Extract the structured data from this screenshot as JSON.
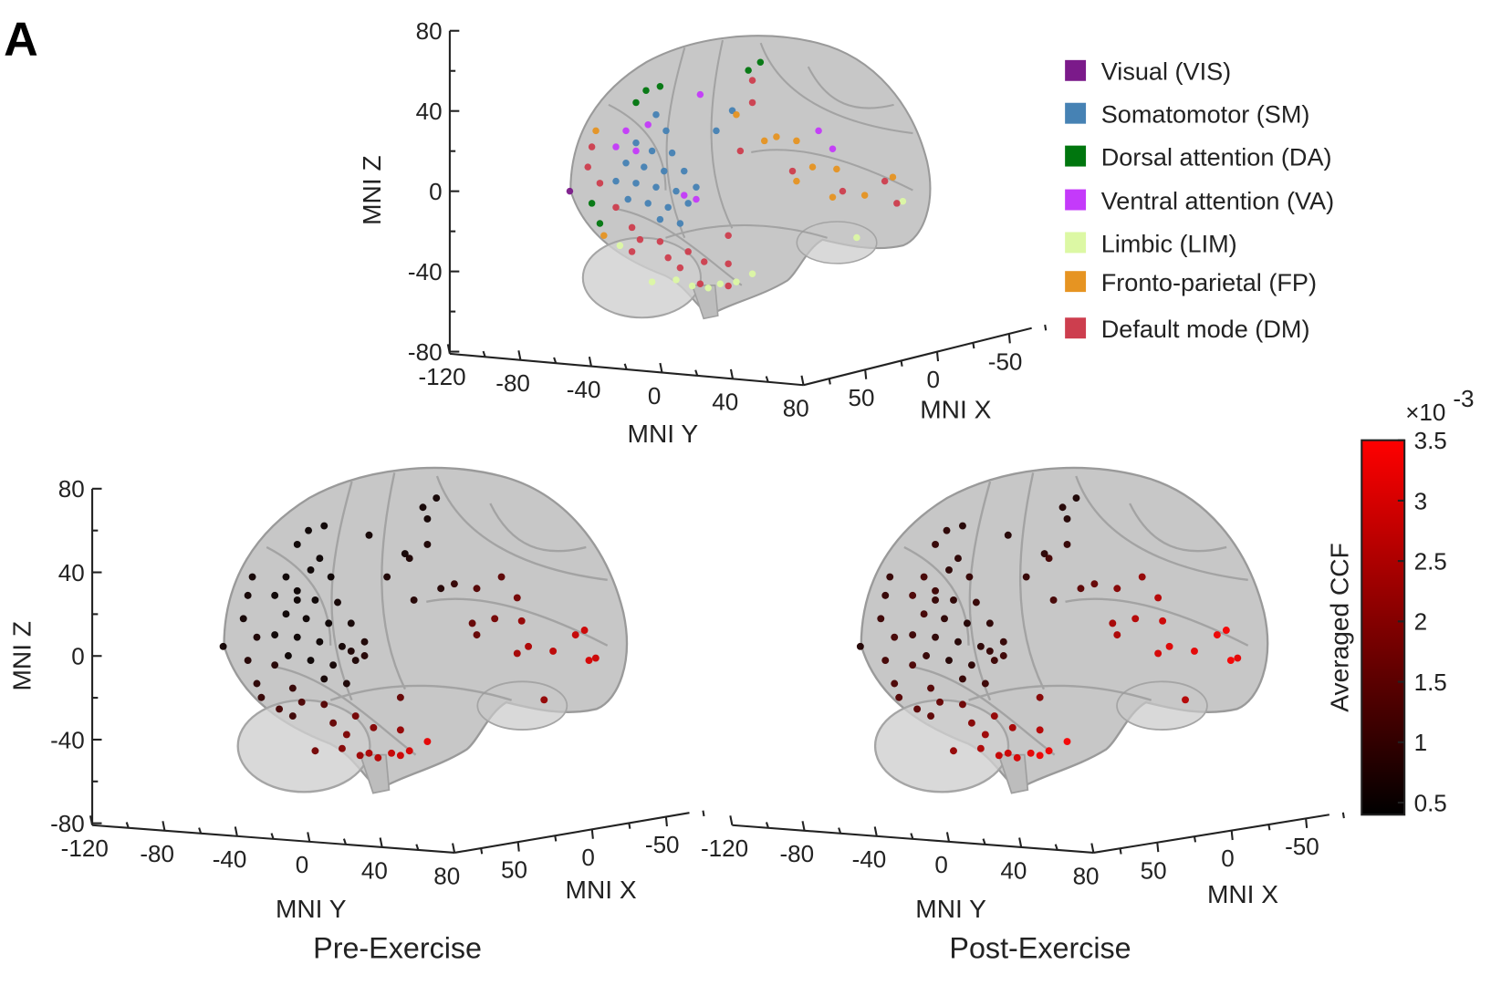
{
  "panel_label": "A",
  "chart_data": [
    {
      "type": "scatter",
      "view": "3d-lateral-brain",
      "xlabel": "MNI Y",
      "ylabel": "MNI Z",
      "zlabel": "MNI X",
      "y_ticks": [
        "-120",
        "-80",
        "-40",
        "0",
        "40",
        "80"
      ],
      "z_ticks": [
        "80",
        "40",
        "0",
        "-40",
        "-80"
      ],
      "x_ticks": [
        "50",
        "0",
        "-50"
      ],
      "ylim": [
        -120,
        80
      ],
      "zlim": [
        -80,
        80
      ],
      "xlim": [
        75,
        -75
      ],
      "color_by": "network",
      "legend_position": "right",
      "legend": [
        {
          "key": "VIS",
          "label": "Visual (VIS)",
          "color": "#7b1a8a"
        },
        {
          "key": "SM",
          "label": "Somatomotor (SM)",
          "color": "#4682b4"
        },
        {
          "key": "DA",
          "label": "Dorsal attention (DA)",
          "color": "#00760e"
        },
        {
          "key": "VA",
          "label": "Ventral attention (VA)",
          "color": "#c43afa"
        },
        {
          "key": "LIM",
          "label": "Limbic (LIM)",
          "color": "#dcf8a4"
        },
        {
          "key": "FP",
          "label": "Fronto-parietal (FP)",
          "color": "#e69422"
        },
        {
          "key": "DM",
          "label": "Default mode (DM)",
          "color": "#cd3e4e"
        }
      ]
    },
    {
      "type": "scatter",
      "view": "3d-lateral-brain",
      "title": "Pre-Exercise",
      "xlabel": "MNI Y",
      "ylabel": "MNI Z",
      "zlabel": "MNI X",
      "y_ticks": [
        "-120",
        "-80",
        "-40",
        "0",
        "40",
        "80"
      ],
      "z_ticks": [
        "80",
        "40",
        "0",
        "-40",
        "-80"
      ],
      "x_ticks": [
        "50",
        "0",
        "-50"
      ],
      "color_by": "pre",
      "colormap": "black-to-red"
    },
    {
      "type": "scatter",
      "view": "3d-lateral-brain",
      "title": "Post-Exercise",
      "xlabel": "MNI Y",
      "zlabel": "MNI X",
      "y_ticks": [
        "-120",
        "-80",
        "-40",
        "0",
        "40",
        "80"
      ],
      "x_ticks": [
        "50",
        "0",
        "-50"
      ],
      "color_by": "post",
      "colormap": "black-to-red"
    }
  ],
  "colorbar": {
    "label": "Averaged CCF",
    "multiplier": "×10",
    "exponent": "-3",
    "range": [
      0.4,
      3.5
    ],
    "ticks": [
      "3.5",
      "3",
      "2.5",
      "2",
      "1.5",
      "1",
      "0.5"
    ],
    "color_low": "#000000",
    "color_high": "#ff0000"
  },
  "electrodes": [
    {
      "net": "VIS",
      "y": -103,
      "z": 0,
      "pre": 0.6,
      "post": 0.8
    },
    {
      "net": "SM",
      "y": -60,
      "z": 38,
      "pre": 0.5,
      "post": 0.9
    },
    {
      "net": "SM",
      "y": -55,
      "z": 30,
      "pre": 0.5,
      "post": 1.0
    },
    {
      "net": "SM",
      "y": -70,
      "z": 24,
      "pre": 0.5,
      "post": 1.1
    },
    {
      "net": "SM",
      "y": -62,
      "z": 20,
      "pre": 0.5,
      "post": 0.9
    },
    {
      "net": "SM",
      "y": -52,
      "z": 19,
      "pre": 0.6,
      "post": 1.0
    },
    {
      "net": "SM",
      "y": -75,
      "z": 14,
      "pre": 0.5,
      "post": 1.2
    },
    {
      "net": "SM",
      "y": -66,
      "z": 12,
      "pre": 0.5,
      "post": 0.9
    },
    {
      "net": "SM",
      "y": -56,
      "z": 10,
      "pre": 0.5,
      "post": 0.8
    },
    {
      "net": "SM",
      "y": -46,
      "z": 10,
      "pre": 0.6,
      "post": 0.9
    },
    {
      "net": "SM",
      "y": -80,
      "z": 5,
      "pre": 0.5,
      "post": 1.1
    },
    {
      "net": "SM",
      "y": -70,
      "z": 4,
      "pre": 0.5,
      "post": 0.9
    },
    {
      "net": "SM",
      "y": -60,
      "z": 2,
      "pre": 0.5,
      "post": 0.8
    },
    {
      "net": "SM",
      "y": -50,
      "z": 0,
      "pre": 0.6,
      "post": 0.9
    },
    {
      "net": "SM",
      "y": -40,
      "z": 2,
      "pre": 0.7,
      "post": 1.0
    },
    {
      "net": "SM",
      "y": -74,
      "z": -4,
      "pre": 0.5,
      "post": 1.0
    },
    {
      "net": "SM",
      "y": -64,
      "z": -6,
      "pre": 0.5,
      "post": 0.8
    },
    {
      "net": "SM",
      "y": -54,
      "z": -8,
      "pre": 0.6,
      "post": 0.9
    },
    {
      "net": "SM",
      "y": -44,
      "z": -6,
      "pre": 0.7,
      "post": 1.1
    },
    {
      "net": "SM",
      "y": -58,
      "z": -14,
      "pre": 0.6,
      "post": 1.0
    },
    {
      "net": "SM",
      "y": -48,
      "z": -16,
      "pre": 0.7,
      "post": 1.1
    },
    {
      "net": "SM",
      "y": -22,
      "z": 40,
      "pre": 0.6,
      "post": 0.9
    },
    {
      "net": "SM",
      "y": -30,
      "z": 30,
      "pre": 0.7,
      "post": 1.0
    },
    {
      "net": "DA",
      "y": -65,
      "z": 50,
      "pre": 0.5,
      "post": 0.9
    },
    {
      "net": "DA",
      "y": -70,
      "z": 44,
      "pre": 0.5,
      "post": 1.0
    },
    {
      "net": "DA",
      "y": -58,
      "z": 52,
      "pre": 0.5,
      "post": 0.8
    },
    {
      "net": "DA",
      "y": -14,
      "z": 60,
      "pre": 0.6,
      "post": 0.8
    },
    {
      "net": "DA",
      "y": -8,
      "z": 64,
      "pre": 0.6,
      "post": 0.7
    },
    {
      "net": "DA",
      "y": -92,
      "z": -6,
      "pre": 0.8,
      "post": 1.2
    },
    {
      "net": "DA",
      "y": -88,
      "z": -16,
      "pre": 0.9,
      "post": 1.3
    },
    {
      "net": "VA",
      "y": -75,
      "z": 30,
      "pre": 0.5,
      "post": 1.2
    },
    {
      "net": "VA",
      "y": -80,
      "z": 22,
      "pre": 0.5,
      "post": 1.3
    },
    {
      "net": "VA",
      "y": -70,
      "z": 20,
      "pre": 0.5,
      "post": 1.0
    },
    {
      "net": "VA",
      "y": -64,
      "z": 33,
      "pre": 0.5,
      "post": 0.9
    },
    {
      "net": "VA",
      "y": -38,
      "z": 48,
      "pre": 0.6,
      "post": 0.8
    },
    {
      "net": "VA",
      "y": 21,
      "z": 30,
      "pre": 1.5,
      "post": 2.2
    },
    {
      "net": "VA",
      "y": 28,
      "z": 21,
      "pre": 1.8,
      "post": 2.6
    },
    {
      "net": "VA",
      "y": -46,
      "z": -2,
      "pre": 0.7,
      "post": 1.0
    },
    {
      "net": "VA",
      "y": -40,
      "z": -4,
      "pre": 0.8,
      "post": 1.1
    },
    {
      "net": "LIM",
      "y": -78,
      "z": -27,
      "pre": 1.2,
      "post": 1.5
    },
    {
      "net": "LIM",
      "y": -62,
      "z": -45,
      "pre": 1.8,
      "post": 2.2
    },
    {
      "net": "LIM",
      "y": -50,
      "z": -44,
      "pre": 2.0,
      "post": 2.5
    },
    {
      "net": "LIM",
      "y": -42,
      "z": -47,
      "pre": 2.3,
      "post": 2.8
    },
    {
      "net": "LIM",
      "y": -34,
      "z": -48,
      "pre": 2.6,
      "post": 3.0
    },
    {
      "net": "LIM",
      "y": -28,
      "z": -46,
      "pre": 2.8,
      "post": 3.2
    },
    {
      "net": "LIM",
      "y": -20,
      "z": -45,
      "pre": 3.0,
      "post": 3.3
    },
    {
      "net": "LIM",
      "y": -12,
      "z": -41,
      "pre": 3.2,
      "post": 3.4
    },
    {
      "net": "LIM",
      "y": 40,
      "z": -23,
      "pre": 2.2,
      "post": 2.6
    },
    {
      "net": "LIM",
      "y": 63,
      "z": -5,
      "pre": 2.9,
      "post": 3.2
    },
    {
      "net": "FP",
      "y": -90,
      "z": 30,
      "pre": 0.6,
      "post": 1.0
    },
    {
      "net": "FP",
      "y": -86,
      "z": -22,
      "pre": 1.0,
      "post": 1.4
    },
    {
      "net": "FP",
      "y": -20,
      "z": 38,
      "pre": 0.7,
      "post": 1.2
    },
    {
      "net": "FP",
      "y": -6,
      "z": 25,
      "pre": 0.8,
      "post": 1.5
    },
    {
      "net": "FP",
      "y": 0,
      "z": 27,
      "pre": 1.0,
      "post": 1.6
    },
    {
      "net": "FP",
      "y": 10,
      "z": 25,
      "pre": 1.4,
      "post": 2.0
    },
    {
      "net": "FP",
      "y": 18,
      "z": 12,
      "pre": 1.8,
      "post": 2.6
    },
    {
      "net": "FP",
      "y": 10,
      "z": 5,
      "pre": 1.6,
      "post": 2.5
    },
    {
      "net": "FP",
      "y": 28,
      "z": -3,
      "pre": 2.4,
      "post": 3.0
    },
    {
      "net": "FP",
      "y": 30,
      "z": 11,
      "pre": 2.2,
      "post": 2.9
    },
    {
      "net": "FP",
      "y": 44,
      "z": -2,
      "pre": 2.7,
      "post": 3.2
    },
    {
      "net": "FP",
      "y": 58,
      "z": 7,
      "pre": 2.9,
      "post": 3.4
    },
    {
      "net": "DM",
      "y": -92,
      "z": 22,
      "pre": 0.6,
      "post": 1.0
    },
    {
      "net": "DM",
      "y": -94,
      "z": 12,
      "pre": 0.6,
      "post": 1.1
    },
    {
      "net": "DM",
      "y": -88,
      "z": 4,
      "pre": 0.7,
      "post": 1.2
    },
    {
      "net": "DM",
      "y": -80,
      "z": -8,
      "pre": 0.8,
      "post": 1.3
    },
    {
      "net": "DM",
      "y": -72,
      "z": -18,
      "pre": 1.0,
      "post": 1.4
    },
    {
      "net": "DM",
      "y": -68,
      "z": -24,
      "pre": 1.3,
      "post": 1.6
    },
    {
      "net": "DM",
      "y": -58,
      "z": -25,
      "pre": 1.4,
      "post": 1.7
    },
    {
      "net": "DM",
      "y": -72,
      "z": -30,
      "pre": 1.1,
      "post": 1.5
    },
    {
      "net": "DM",
      "y": -54,
      "z": -33,
      "pre": 1.6,
      "post": 2.0
    },
    {
      "net": "DM",
      "y": -44,
      "z": -30,
      "pre": 1.8,
      "post": 2.2
    },
    {
      "net": "DM",
      "y": -36,
      "z": -35,
      "pre": 2.0,
      "post": 2.4
    },
    {
      "net": "DM",
      "y": -48,
      "z": -38,
      "pre": 1.9,
      "post": 2.3
    },
    {
      "net": "DM",
      "y": -24,
      "z": -22,
      "pre": 1.6,
      "post": 2.0
    },
    {
      "net": "DM",
      "y": -24,
      "z": -36,
      "pre": 2.2,
      "post": 2.6
    },
    {
      "net": "DM",
      "y": -24,
      "z": -47,
      "pre": 2.9,
      "post": 3.3
    },
    {
      "net": "DM",
      "y": -38,
      "z": -46,
      "pre": 2.5,
      "post": 2.9
    },
    {
      "net": "DM",
      "y": -12,
      "z": 55,
      "pre": 0.6,
      "post": 0.8
    },
    {
      "net": "DM",
      "y": -12,
      "z": 44,
      "pre": 0.7,
      "post": 1.0
    },
    {
      "net": "DM",
      "y": -18,
      "z": 20,
      "pre": 0.8,
      "post": 1.2
    },
    {
      "net": "DM",
      "y": 8,
      "z": 10,
      "pre": 1.6,
      "post": 2.4
    },
    {
      "net": "DM",
      "y": 33,
      "z": 0,
      "pre": 2.5,
      "post": 3.1
    },
    {
      "net": "DM",
      "y": 60,
      "z": -6,
      "pre": 3.0,
      "post": 3.4
    },
    {
      "net": "DM",
      "y": 54,
      "z": 5,
      "pre": 2.8,
      "post": 3.3
    }
  ]
}
